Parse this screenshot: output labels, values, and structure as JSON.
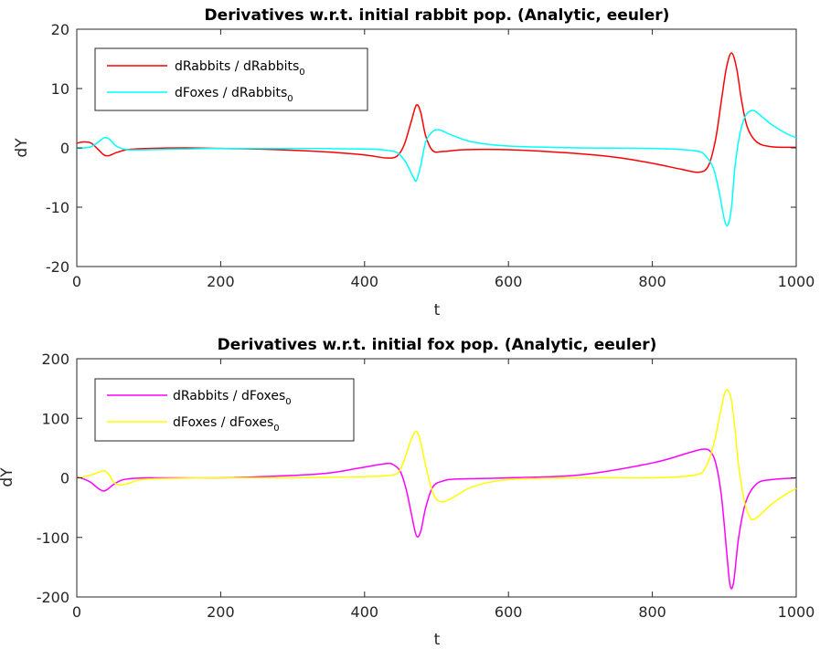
{
  "chart_data": [
    {
      "type": "line",
      "title": "Derivatives w.r.t. initial rabbit pop. (Analytic, eeuler)",
      "xlabel": "t",
      "ylabel": "dY",
      "xlim": [
        0,
        1000
      ],
      "ylim": [
        -20,
        20
      ],
      "xticks": [
        0,
        200,
        400,
        600,
        800,
        1000
      ],
      "yticks": [
        -20,
        -10,
        0,
        10,
        20
      ],
      "xtick_labels": [
        "0",
        "200",
        "400",
        "600",
        "800",
        "1000"
      ],
      "ytick_labels": [
        "-20",
        "-10",
        "0",
        "10",
        "20"
      ],
      "grid": false,
      "legend": "top-left",
      "series": [
        {
          "name": "dRabbits / dRabbits",
          "name_sub": "0",
          "color": "#ff0000",
          "x": [
            0,
            10,
            20,
            30,
            38,
            45,
            55,
            70,
            100,
            150,
            200,
            250,
            300,
            350,
            400,
            430,
            445,
            455,
            465,
            472,
            478,
            485,
            495,
            510,
            540,
            600,
            650,
            700,
            750,
            800,
            840,
            865,
            878,
            888,
            896,
            903,
            910,
            917,
            924,
            932,
            945,
            965,
            1000
          ],
          "y": [
            0.8,
            1.0,
            0.8,
            -0.3,
            -1.2,
            -1.3,
            -0.8,
            -0.3,
            -0.1,
            0,
            -0.1,
            -0.2,
            -0.4,
            -0.7,
            -1.2,
            -1.7,
            -1.4,
            0.5,
            4.5,
            7.2,
            6.0,
            2.0,
            -0.5,
            -0.6,
            -0.3,
            -0.3,
            -0.6,
            -1.0,
            -1.6,
            -2.6,
            -3.6,
            -4.1,
            -3.0,
            1.5,
            8.0,
            13.5,
            16.0,
            13.5,
            8.0,
            3.5,
            1.0,
            0.2,
            0.1
          ]
        },
        {
          "name": "dFoxes / dRabbits",
          "name_sub": "0",
          "color": "#00ffff",
          "x": [
            0,
            10,
            20,
            30,
            38,
            45,
            55,
            70,
            100,
            150,
            200,
            300,
            400,
            430,
            445,
            455,
            462,
            468,
            472,
            478,
            485,
            495,
            505,
            520,
            550,
            600,
            700,
            800,
            860,
            875,
            885,
            893,
            900,
            905,
            910,
            915,
            922,
            930,
            940,
            950,
            965,
            985,
            1000
          ],
          "y": [
            -0.1,
            0,
            0.2,
            1.0,
            1.7,
            1.5,
            0.3,
            -0.3,
            -0.3,
            -0.2,
            -0.1,
            -0.1,
            -0.2,
            -0.4,
            -0.8,
            -2.0,
            -3.5,
            -5.0,
            -5.5,
            -3.0,
            1.0,
            2.8,
            3.0,
            2.2,
            1.0,
            0.3,
            0,
            -0.1,
            -0.5,
            -1.5,
            -3.5,
            -7.5,
            -12.0,
            -13.0,
            -10.0,
            -3.0,
            2.5,
            5.5,
            6.3,
            5.5,
            4.0,
            2.5,
            1.7
          ]
        }
      ]
    },
    {
      "type": "line",
      "title": "Derivatives w.r.t. initial fox pop. (Analytic, eeuler)",
      "xlabel": "t",
      "ylabel": "dY",
      "xlim": [
        0,
        1000
      ],
      "ylim": [
        -200,
        200
      ],
      "xticks": [
        0,
        200,
        400,
        600,
        800,
        1000
      ],
      "yticks": [
        -200,
        -100,
        0,
        100,
        200
      ],
      "xtick_labels": [
        "0",
        "200",
        "400",
        "600",
        "800",
        "1000"
      ],
      "ytick_labels": [
        "-200",
        "-100",
        "0",
        "100",
        "200"
      ],
      "grid": false,
      "legend": "top-left",
      "series": [
        {
          "name": "dRabbits / dFoxes",
          "name_sub": "0",
          "color": "#ff00ff",
          "x": [
            0,
            10,
            20,
            30,
            37,
            42,
            50,
            60,
            70,
            100,
            200,
            300,
            350,
            400,
            430,
            440,
            450,
            458,
            465,
            472,
            478,
            485,
            495,
            510,
            530,
            600,
            700,
            800,
            850,
            870,
            880,
            888,
            896,
            903,
            908,
            913,
            920,
            930,
            945,
            965,
            1000
          ],
          "y": [
            2,
            -2,
            -8,
            -18,
            -22,
            -20,
            -12,
            -5,
            -2,
            0,
            0,
            4,
            8,
            18,
            24,
            22,
            10,
            -20,
            -60,
            -97,
            -90,
            -50,
            -15,
            -5,
            -2,
            0,
            5,
            25,
            42,
            48,
            45,
            25,
            -30,
            -120,
            -180,
            -175,
            -100,
            -40,
            -10,
            -3,
            0
          ]
        },
        {
          "name": "dFoxes / dFoxes",
          "name_sub": "0",
          "color": "#ffff00",
          "x": [
            0,
            10,
            20,
            30,
            38,
            45,
            52,
            60,
            70,
            100,
            200,
            300,
            400,
            440,
            450,
            458,
            465,
            472,
            478,
            485,
            495,
            505,
            520,
            550,
            600,
            700,
            800,
            860,
            875,
            885,
            893,
            900,
            905,
            910,
            915,
            920,
            928,
            935,
            940,
            950,
            965,
            985,
            1000
          ],
          "y": [
            0,
            2,
            5,
            9,
            12,
            5,
            -8,
            -12,
            -10,
            -2,
            0,
            0,
            2,
            5,
            15,
            40,
            65,
            78,
            60,
            20,
            -25,
            -40,
            -35,
            -15,
            -3,
            0,
            0,
            5,
            20,
            55,
            100,
            140,
            147,
            130,
            80,
            20,
            -40,
            -65,
            -70,
            -62,
            -45,
            -28,
            -18
          ]
        }
      ]
    }
  ]
}
